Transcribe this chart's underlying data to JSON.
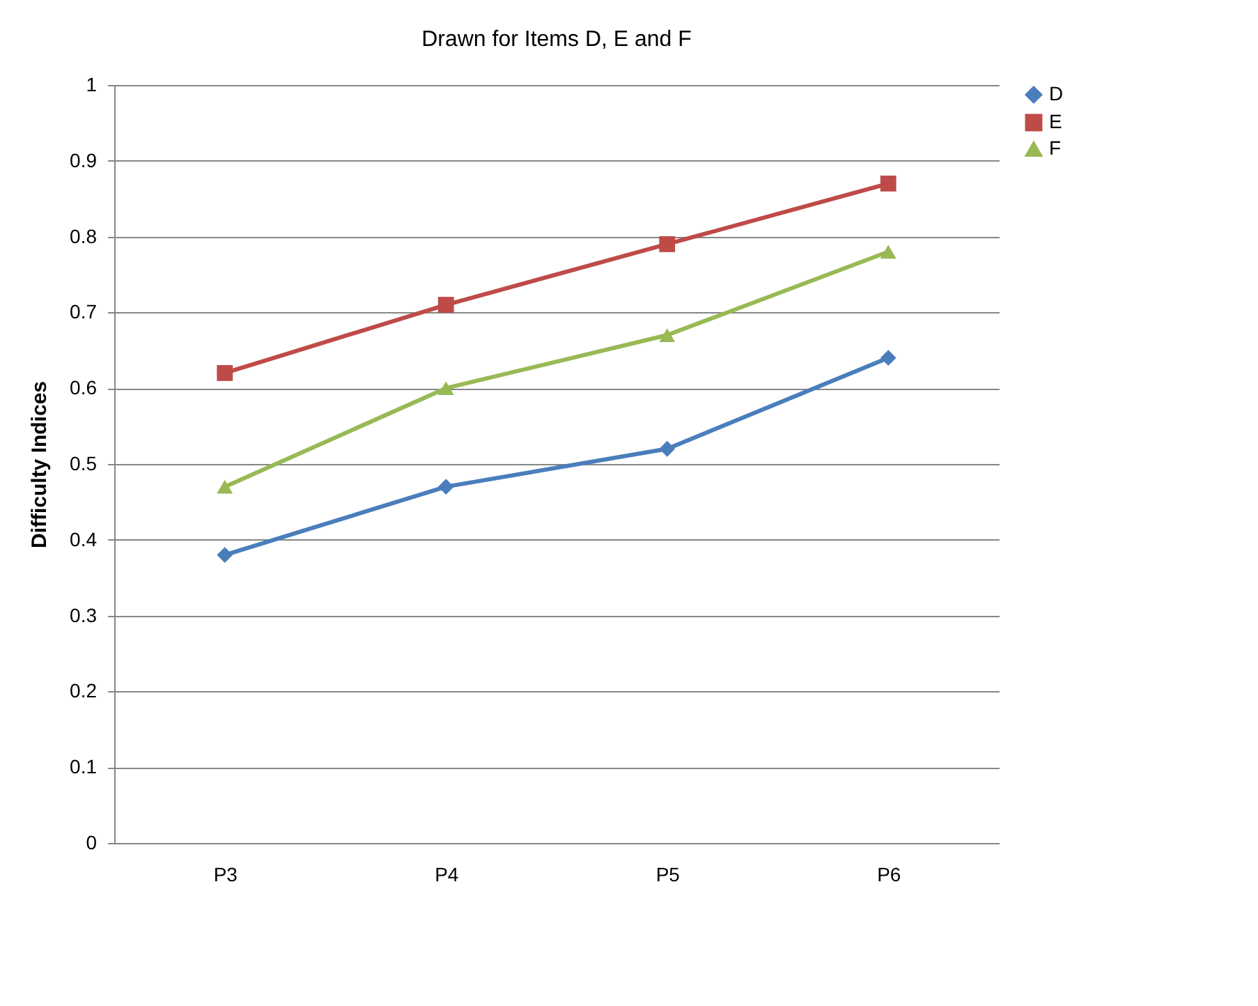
{
  "chart_data": {
    "type": "line",
    "title": "Drawn for Items D, E and F",
    "ylabel": "Difficulty Indices",
    "categories": [
      "P3",
      "P4",
      "P5",
      "P6"
    ],
    "series": [
      {
        "name": "D",
        "color": "#4a7ebb",
        "marker": "diamond",
        "values": [
          0.38,
          0.47,
          0.52,
          0.64
        ]
      },
      {
        "name": "E",
        "color": "#be4b48",
        "marker": "square",
        "values": [
          0.62,
          0.71,
          0.79,
          0.87
        ]
      },
      {
        "name": "F",
        "color": "#98b954",
        "marker": "triangle",
        "values": [
          0.47,
          0.6,
          0.67,
          0.78
        ]
      }
    ],
    "ylim": [
      0,
      1
    ],
    "yticks": [
      0,
      0.1,
      0.2,
      0.3,
      0.4,
      0.5,
      0.6,
      0.7,
      0.8,
      0.9,
      1
    ],
    "grid": "y",
    "legend": "right",
    "line_style": "solid"
  }
}
